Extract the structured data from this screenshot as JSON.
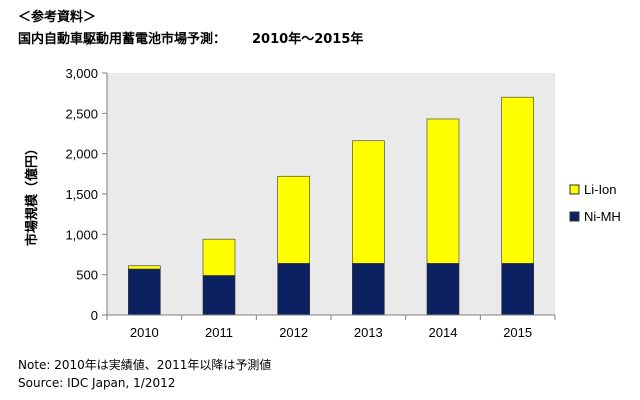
{
  "header_label": "＜参考資料＞",
  "title": "国内自動車駆動用蓄電池市場予測：",
  "title_range": "2010年～2015年",
  "note": "Note: 2010年は実績値、2011年以降は予測値",
  "source": "Source: IDC Japan, 1/2012",
  "colors": {
    "li_ion": "#FFFF00",
    "ni_mh": "#0B2161",
    "plot_bg": "#EAEAEA",
    "axis": "#808080"
  },
  "chart_data": {
    "type": "bar",
    "stacked": true,
    "categories": [
      "2010",
      "2011",
      "2012",
      "2013",
      "2014",
      "2015"
    ],
    "series": [
      {
        "name": "Ni-MH",
        "values": [
          570,
          490,
          640,
          640,
          640,
          640
        ]
      },
      {
        "name": "Li-Ion",
        "values": [
          40,
          450,
          1080,
          1520,
          1790,
          2060
        ]
      }
    ],
    "ylabel": "市場規模（億円）",
    "ylim": [
      0,
      3000
    ],
    "yticks": [
      "0",
      "500",
      "1,000",
      "1,500",
      "2,000",
      "2,500",
      "3,000"
    ],
    "ytick_values": [
      0,
      500,
      1000,
      1500,
      2000,
      2500,
      3000
    ],
    "grid": false,
    "legend": "right"
  }
}
